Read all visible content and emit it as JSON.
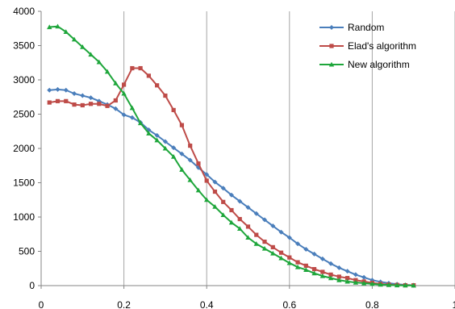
{
  "chart_data": {
    "type": "line",
    "title": "",
    "xlabel": "",
    "ylabel": "",
    "xlim": [
      0,
      1
    ],
    "ylim": [
      0,
      4000
    ],
    "x_ticks": [
      0,
      0.2,
      0.4,
      0.6,
      0.8,
      1
    ],
    "x_tick_labels": [
      "0",
      "0.2",
      "0.4",
      "0.6",
      "0.8",
      "1"
    ],
    "y_ticks": [
      0,
      500,
      1000,
      1500,
      2000,
      2500,
      3000,
      3500,
      4000
    ],
    "y_tick_labels": [
      "0",
      "500",
      "1000",
      "1500",
      "2000",
      "2500",
      "3000",
      "3500",
      "4000"
    ],
    "grid": "vertical",
    "legend_position": "top-right",
    "x": [
      0.02,
      0.04,
      0.06,
      0.08,
      0.1,
      0.12,
      0.14,
      0.16,
      0.18,
      0.2,
      0.22,
      0.24,
      0.26,
      0.28,
      0.3,
      0.32,
      0.34,
      0.36,
      0.38,
      0.4,
      0.42,
      0.44,
      0.46,
      0.48,
      0.5,
      0.52,
      0.54,
      0.56,
      0.58,
      0.6,
      0.62,
      0.64,
      0.66,
      0.68,
      0.7,
      0.72,
      0.74,
      0.76,
      0.78,
      0.8,
      0.82,
      0.84,
      0.86,
      0.88,
      0.9
    ],
    "series": [
      {
        "name": "Random",
        "color": "#4a7ebb",
        "marker": "diamond",
        "values": [
          2850,
          2860,
          2850,
          2800,
          2770,
          2740,
          2690,
          2640,
          2580,
          2490,
          2450,
          2380,
          2270,
          2190,
          2100,
          2010,
          1920,
          1830,
          1720,
          1620,
          1510,
          1420,
          1320,
          1230,
          1140,
          1050,
          960,
          870,
          780,
          700,
          610,
          530,
          460,
          390,
          320,
          260,
          210,
          160,
          120,
          80,
          55,
          35,
          20,
          10,
          5
        ]
      },
      {
        "name": "Elad's algorithm",
        "color": "#be4b48",
        "marker": "square",
        "values": [
          2670,
          2690,
          2690,
          2640,
          2630,
          2650,
          2650,
          2620,
          2700,
          2930,
          3170,
          3170,
          3060,
          2920,
          2770,
          2560,
          2340,
          2040,
          1780,
          1530,
          1370,
          1220,
          1100,
          970,
          860,
          740,
          640,
          560,
          480,
          410,
          340,
          290,
          240,
          200,
          160,
          130,
          110,
          80,
          60,
          40,
          25,
          15,
          10,
          5,
          5
        ]
      },
      {
        "name": "New algorithm",
        "color": "#1ea63b",
        "marker": "triangle",
        "values": [
          3770,
          3780,
          3700,
          3590,
          3480,
          3370,
          3260,
          3120,
          2950,
          2800,
          2590,
          2370,
          2220,
          2120,
          2000,
          1880,
          1690,
          1540,
          1390,
          1250,
          1150,
          1030,
          920,
          830,
          700,
          610,
          540,
          470,
          400,
          330,
          270,
          230,
          180,
          140,
          110,
          80,
          60,
          45,
          35,
          25,
          15,
          10,
          5,
          3,
          2
        ]
      }
    ]
  }
}
